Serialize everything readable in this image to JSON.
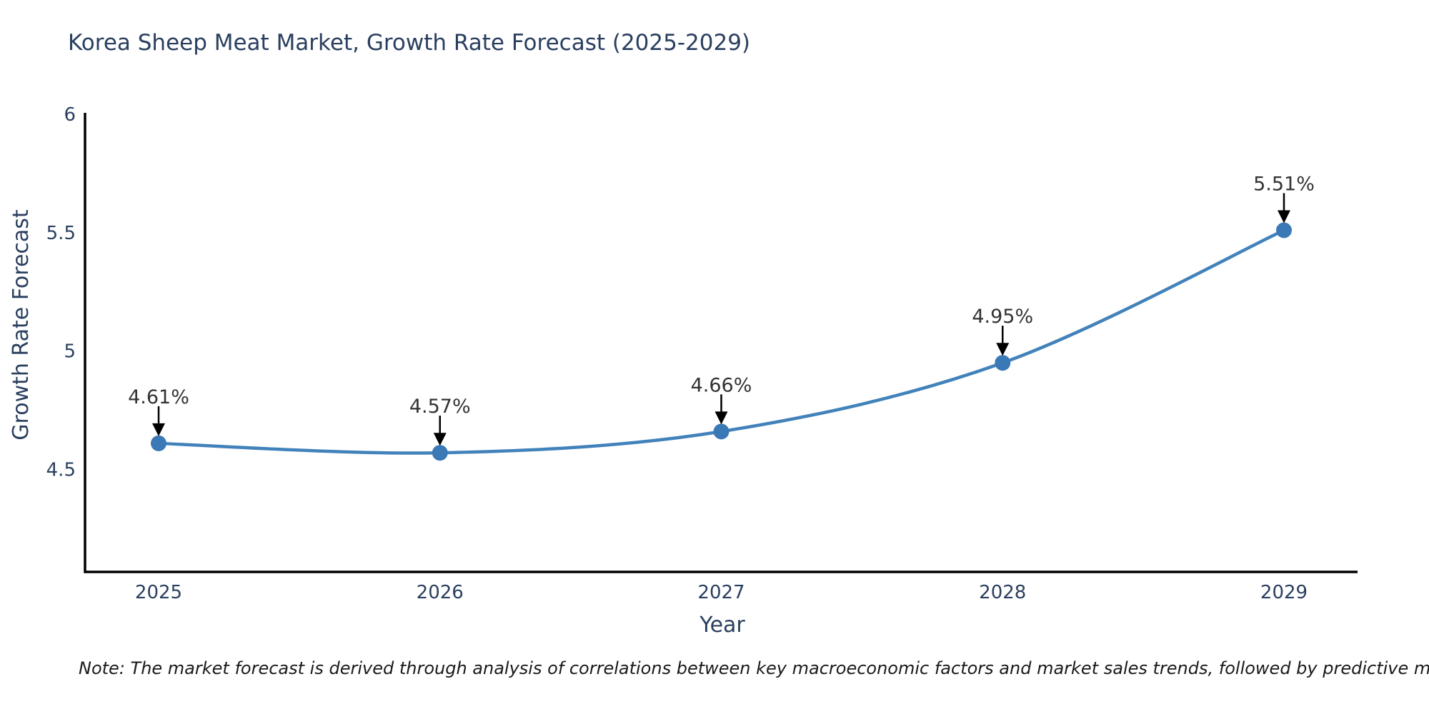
{
  "chart_data": {
    "type": "line",
    "title": "Korea Sheep Meat Market, Growth Rate Forecast (2025-2029)",
    "xlabel": "Year",
    "ylabel": "Growth Rate Forecast",
    "categories": [
      "2025",
      "2026",
      "2027",
      "2028",
      "2029"
    ],
    "values": [
      4.61,
      4.57,
      4.66,
      4.95,
      5.51
    ],
    "point_labels": [
      "4.61%",
      "4.57%",
      "4.66%",
      "4.95%",
      "5.51%"
    ],
    "ytick_labels": [
      "6",
      "5.5",
      "5",
      "4.5"
    ],
    "ylim": [
      4.067,
      6.0
    ],
    "line_shape": "spline",
    "grid": false,
    "legend_position": "none",
    "annotations_style": "value-label-with-down-arrow"
  },
  "note": {
    "text": "Note: The market forecast is derived through analysis of correlations between key macroeconomic factors and market sales trends, followed by predictive modeling to project future sales"
  },
  "colors": {
    "line": "#4282bb",
    "marker": "#3a79b6",
    "title_text": "#2a3f5f",
    "tick_text": "#2a3f5f",
    "axis_line": "#000000",
    "annotation_text": "#333333",
    "annotation_arrow": "#000000",
    "background": "#ffffff"
  }
}
